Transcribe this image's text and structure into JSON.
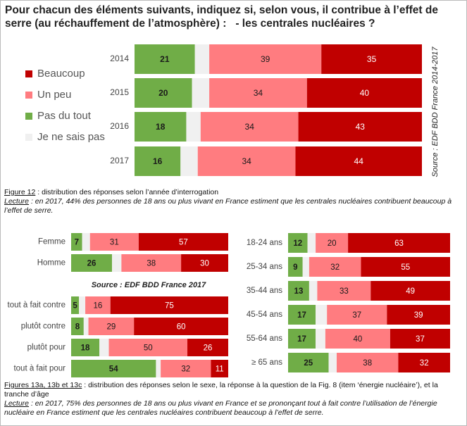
{
  "title": "Pour chacun des éléments suivants, indiquez si, selon vous, il contribue à l’effet de serre (au réchauffement de l’atmosphère) :   - les centrales nucléaires ?",
  "caption_1": {
    "label": "Figure 12",
    "text": " : distribution des réponses selon l’année d’interrogation",
    "reading_label": "Lecture",
    "reading_text": " : en 2017, 44% des personnes de 18 ans ou plus vivant en France estiment que les centrales nucléaires contribuent beaucoup à l’effet de serre."
  },
  "caption_2": {
    "label": "Figures 13a, 13b et 13c",
    "text": " : distribution des réponses selon le sexe, la réponse à la question de la Fig. 8 (item ‘énergie nucléaire’), et la tranche d’âge",
    "reading_label": "Lecture",
    "reading_text": " : en 2017, 75% des personnes de 18 ans ou plus vivant en France et se prononçant tout à fait contre l’utilisation de l’énergie nucléaire en France estiment que les centrales nucléaires contribuent beaucoup à l’effet de serre."
  },
  "chart_data": [
    {
      "type": "bar",
      "orientation": "horizontal",
      "stacked": true,
      "xlim": [
        0,
        100
      ],
      "legend": "left",
      "legend_order": [
        3,
        2,
        0,
        1
      ],
      "source": "Source : EDF BDD France 2014-2017",
      "categories": [
        "2014",
        "2015",
        "2016",
        "2017"
      ],
      "series": [
        {
          "name": "Pas du tout",
          "color": "#70ad47",
          "label_color": "#1a1a1a",
          "values": [
            21,
            20,
            18,
            16
          ]
        },
        {
          "name": "Je ne sais pas",
          "color": "#f0f0f0",
          "labels": false,
          "values": [
            5,
            6,
            5,
            6
          ]
        },
        {
          "name": "Un peu",
          "color": "#ff7c80",
          "label_color": "#1a1a1a",
          "values": [
            39,
            34,
            34,
            34
          ]
        },
        {
          "name": "Beaucoup",
          "color": "#c00000",
          "label_color": "#ffffff",
          "values": [
            35,
            40,
            43,
            44
          ]
        }
      ]
    },
    {
      "type": "bar",
      "orientation": "horizontal",
      "stacked": true,
      "xlim": [
        0,
        100
      ],
      "source": "Source : EDF BDD France 2017",
      "categories": [
        "Femme",
        "Homme"
      ],
      "series": [
        {
          "color": "#70ad47",
          "label_color": "#1a1a1a",
          "values": [
            7,
            26
          ]
        },
        {
          "color": "#f0f0f0",
          "labels": false,
          "values": [
            5,
            6
          ]
        },
        {
          "color": "#ff7c80",
          "label_color": "#1a1a1a",
          "values": [
            31,
            38
          ]
        },
        {
          "color": "#c00000",
          "label_color": "#ffffff",
          "values": [
            57,
            30
          ]
        }
      ]
    },
    {
      "type": "bar",
      "orientation": "horizontal",
      "stacked": true,
      "xlim": [
        0,
        100
      ],
      "categories": [
        "tout à fait contre",
        "plutôt contre",
        "plutôt pour",
        "tout à fait pour"
      ],
      "series": [
        {
          "color": "#70ad47",
          "label_color": "#1a1a1a",
          "values": [
            5,
            8,
            18,
            54
          ]
        },
        {
          "color": "#f0f0f0",
          "labels": false,
          "values": [
            4,
            3,
            6,
            3
          ]
        },
        {
          "color": "#ff7c80",
          "label_color": "#1a1a1a",
          "values": [
            16,
            29,
            50,
            32
          ]
        },
        {
          "color": "#c00000",
          "label_color": "#ffffff",
          "values": [
            75,
            60,
            26,
            11
          ]
        }
      ]
    },
    {
      "type": "bar",
      "orientation": "horizontal",
      "stacked": true,
      "xlim": [
        0,
        100
      ],
      "categories": [
        "18-24 ans",
        "25-34 ans",
        "35-44 ans",
        "45-54 ans",
        "55-64 ans",
        "≥ 65 ans"
      ],
      "series": [
        {
          "color": "#70ad47",
          "label_color": "#1a1a1a",
          "values": [
            12,
            9,
            13,
            17,
            17,
            25
          ]
        },
        {
          "color": "#f0f0f0",
          "labels": false,
          "values": [
            5,
            4,
            5,
            7,
            6,
            5
          ]
        },
        {
          "color": "#ff7c80",
          "label_color": "#1a1a1a",
          "values": [
            20,
            32,
            33,
            37,
            40,
            38
          ]
        },
        {
          "color": "#c00000",
          "label_color": "#ffffff",
          "values": [
            63,
            55,
            49,
            39,
            37,
            32
          ]
        }
      ]
    }
  ]
}
